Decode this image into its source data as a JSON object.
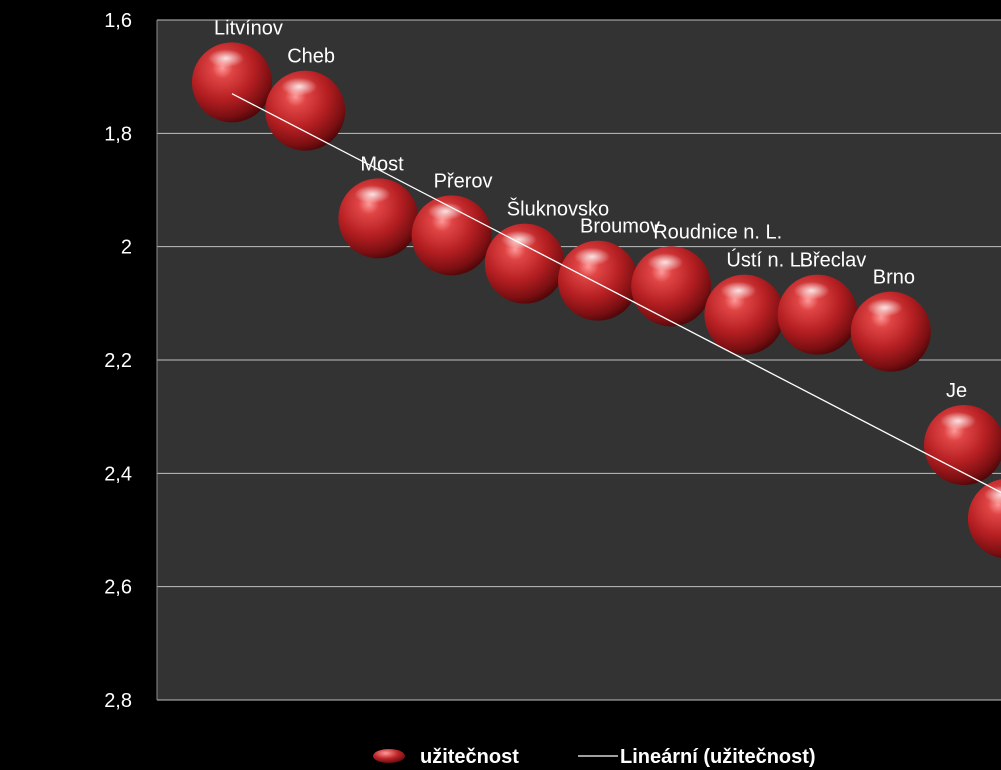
{
  "chart_data": {
    "type": "scatter",
    "title": "",
    "xlabel": "",
    "ylabel": "",
    "y_axis_reversed": true,
    "ylim": [
      1.6,
      2.8
    ],
    "yticks": [
      "1,6",
      "1,8",
      "2",
      "2,2",
      "2,4",
      "2,6",
      "2,8"
    ],
    "ytick_values": [
      1.6,
      1.8,
      2.0,
      2.2,
      2.4,
      2.6,
      2.8
    ],
    "grid": true,
    "legend_position": "bottom",
    "colors": {
      "plot_background": "#333333",
      "page_background": "#000000",
      "gridline": "#bfbfbf",
      "marker": "#c0282b",
      "marker_highlight": "#ff8a8a",
      "trendline": "#ffffff",
      "text": "#ffffff"
    },
    "series": [
      {
        "name": "užitečnost",
        "marker": "sphere",
        "points": [
          {
            "label": "Litvínov",
            "x": 1,
            "y": 1.71
          },
          {
            "label": "Cheb",
            "x": 2,
            "y": 1.76
          },
          {
            "label": "Most",
            "x": 3,
            "y": 1.95
          },
          {
            "label": "Přerov",
            "x": 4,
            "y": 1.98
          },
          {
            "label": "Šluknovsko",
            "x": 5,
            "y": 2.03
          },
          {
            "label": "Broumov",
            "x": 6,
            "y": 2.06
          },
          {
            "label": "Roudnice n. L.",
            "x": 7,
            "y": 2.07
          },
          {
            "label": "Ústí n. L.",
            "x": 8,
            "y": 2.12
          },
          {
            "label": "Břeclav",
            "x": 9,
            "y": 2.12
          },
          {
            "label": "Brno",
            "x": 10,
            "y": 2.15
          },
          {
            "label": "Je",
            "x": 11,
            "y": 2.35
          },
          {
            "label": "",
            "x": 11.6,
            "y": 2.48
          }
        ]
      }
    ],
    "trendline": {
      "name": "Lineární (užitečnost)",
      "type": "linear",
      "start": {
        "x": 1,
        "y": 1.73
      },
      "end": {
        "x": 11.6,
        "y": 2.44
      }
    },
    "legend": [
      {
        "label": "užitečnost",
        "symbol": "marker"
      },
      {
        "label": "Lineární (užitečnost)",
        "symbol": "line"
      }
    ]
  }
}
